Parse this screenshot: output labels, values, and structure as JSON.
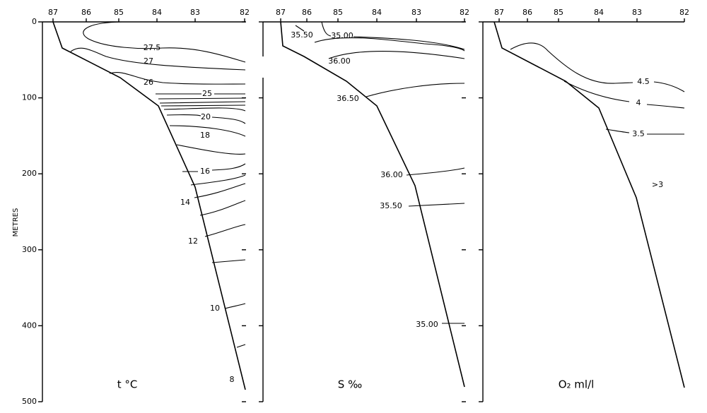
{
  "y_axis": {
    "label": "METRES",
    "ticks": [
      0,
      100,
      200,
      300,
      400,
      500
    ]
  },
  "panels": [
    {
      "label": "t °C",
      "stations": [
        87,
        86,
        85,
        84,
        83,
        82
      ],
      "contour_labels": [
        "27.5",
        "27",
        "26",
        "25",
        "20",
        "18",
        "16",
        "14",
        "12",
        "10",
        "8"
      ]
    },
    {
      "label": "S ‰",
      "stations": [
        87,
        86,
        85,
        84,
        83,
        82
      ],
      "contour_labels": [
        "35.50",
        "35.00",
        "36.00",
        "36.50",
        "36.00",
        "35.50",
        "35.00"
      ]
    },
    {
      "label": "O₂ ml/l",
      "stations": [
        87,
        86,
        85,
        84,
        83,
        82
      ],
      "contour_labels": [
        "4.5",
        "4",
        "3.5",
        ">3"
      ]
    }
  ]
}
